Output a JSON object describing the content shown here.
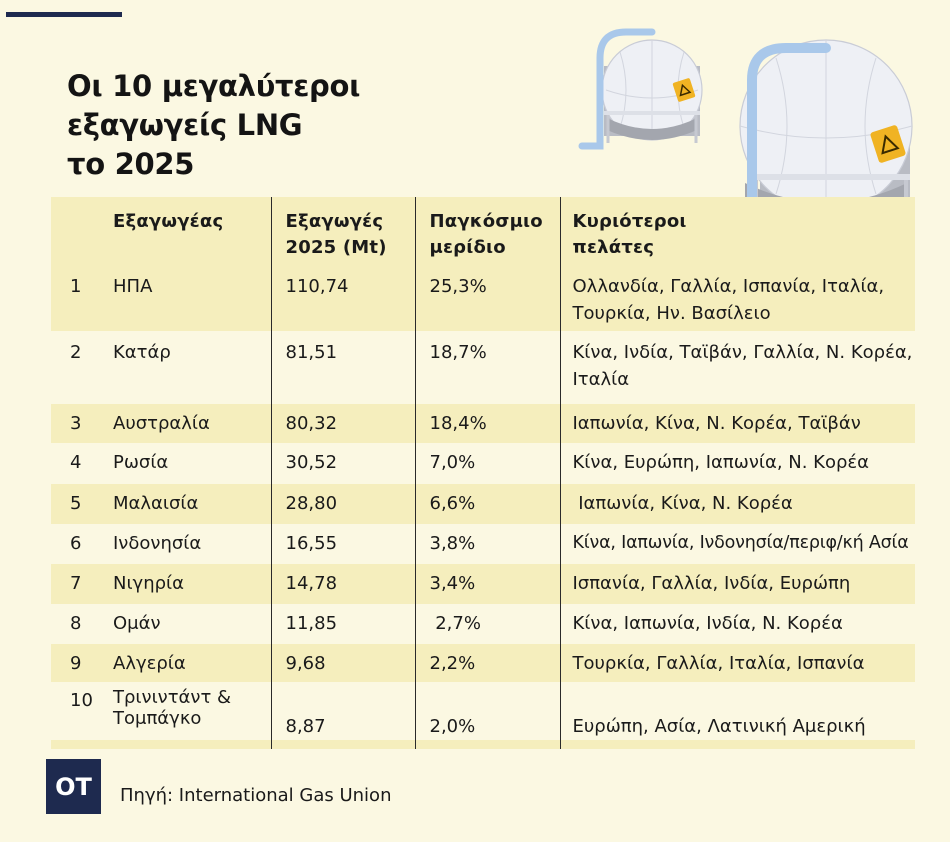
{
  "title": {
    "line1": "Οι 10 μεγαλύτεροι",
    "line2": "εξαγωγείς LNG",
    "line3": "το 2025"
  },
  "table": {
    "headers": {
      "exporter": "Εξαγωγέας",
      "exports_line1": "Εξαγωγές",
      "exports_line2": "2025 (Mt)",
      "share_line1": "Παγκόσμιο",
      "share_line2": "μερίδιο",
      "customers_line1": "Κυριότεροι",
      "customers_line2": "πελάτες"
    },
    "rows": [
      {
        "rank": "1",
        "exporter": "ΗΠΑ",
        "exports": "110,74",
        "share": "25,3%",
        "customers_line1": "Ολλανδία, Γαλλία, Ισπανία, Ιταλία,",
        "customers_line2": "Τουρκία, Ην. Βασίλειο"
      },
      {
        "rank": "2",
        "exporter": "Κατάρ",
        "exports": "81,51",
        "share": "18,7%",
        "customers_line1": "Κίνα, Ινδία, Ταϊβάν, Γαλλία, Ν. Κορέα,",
        "customers_line2": "Ιταλία"
      },
      {
        "rank": "3",
        "exporter": "Αυστραλία",
        "exports": "80,32",
        "share": "18,4%",
        "customers": "Ιαπωνία, Κίνα, Ν. Κορέα, Ταϊβάν"
      },
      {
        "rank": "4",
        "exporter": "Ρωσία",
        "exports": "30,52",
        "share": "7,0%",
        "customers": "Κίνα, Ευρώπη, Ιαπωνία, Ν. Κορέα"
      },
      {
        "rank": "5",
        "exporter": "Μαλαισία",
        "exports": "28,80",
        "share": "6,6%",
        "customers": " Ιαπωνία, Κίνα, Ν. Κορέα"
      },
      {
        "rank": "6",
        "exporter": "Ινδονησία",
        "exports": "16,55",
        "share": "3,8%",
        "customers": "Κίνα, Ιαπωνία, Ινδονησία/περιφ/κή Ασία"
      },
      {
        "rank": "7",
        "exporter": "Νιγηρία",
        "exports": "14,78",
        "share": "3,4%",
        "customers": "Ισπανία, Γαλλία, Ινδία, Ευρώπη"
      },
      {
        "rank": "8",
        "exporter": "Ομάν",
        "exports": "11,85",
        "share": " 2,7%",
        "customers": "Κίνα, Ιαπωνία, Ινδία, Ν. Κορέα"
      },
      {
        "rank": "9",
        "exporter": "Αλγερία",
        "exports": "9,68",
        "share": "2,2%",
        "customers": "Τουρκία, Γαλλία, Ιταλία, Ισπανία"
      },
      {
        "rank": "10",
        "exporter_line1": "Τρινιντάντ &",
        "exporter_line2": "Τομπάγκο",
        "exports": "8,87",
        "share": "2,0%",
        "customers": "Ευρώπη, Ασία, Λατινική Αμερική"
      }
    ]
  },
  "logo": "OT",
  "source": "Πηγή: International Gas Union",
  "colors": {
    "background": "#fbf8e2",
    "row_band": "#f5eebd",
    "navy": "#1e2a4f",
    "tank_body": "#eef0f5",
    "pipe": "#a9c8ea",
    "hazard": "#f0b323"
  },
  "icons": [
    "lng-tank-icon",
    "hazard-icon"
  ]
}
